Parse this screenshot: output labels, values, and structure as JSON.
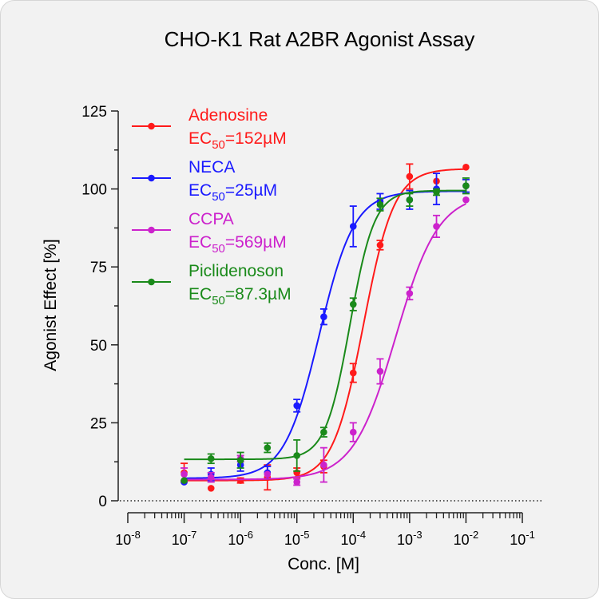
{
  "chart_data": {
    "type": "scatter",
    "title": "CHO-K1 Rat A2BR Agonist Assay",
    "xlabel": "Conc. [M]",
    "ylabel": "Agonist Effect [%]",
    "x_scale": "log",
    "xlim": [
      1e-08,
      0.1
    ],
    "ylim": [
      0,
      125
    ],
    "x_ticks": [
      {
        "value": 1e-08,
        "base": "10",
        "exp": "-8"
      },
      {
        "value": 1e-07,
        "base": "10",
        "exp": "-7"
      },
      {
        "value": 1e-06,
        "base": "10",
        "exp": "-6"
      },
      {
        "value": 1e-05,
        "base": "10",
        "exp": "-5"
      },
      {
        "value": 0.0001,
        "base": "10",
        "exp": "-4"
      },
      {
        "value": 0.001,
        "base": "10",
        "exp": "-3"
      },
      {
        "value": 0.01,
        "base": "10",
        "exp": "-2"
      },
      {
        "value": 0.1,
        "base": "10",
        "exp": "-1"
      }
    ],
    "y_ticks": [
      "0",
      "25",
      "50",
      "75",
      "100",
      "125"
    ],
    "baseline": 0,
    "legend_position": "top-left",
    "series": [
      {
        "name": "Adenosine",
        "ec50_label": {
          "prefix": "EC",
          "sub": "50",
          "value": "=152µM"
        },
        "color": "#ff1a1a",
        "fit": {
          "bottom": 6.5,
          "top": 106.5,
          "ec50": 0.000152,
          "hill": 1.6
        },
        "points": [
          {
            "x": 1e-07,
            "y": 9,
            "err": 3
          },
          {
            "x": 3e-07,
            "y": 4,
            "err": 0
          },
          {
            "x": 1e-06,
            "y": 6.5,
            "err": 0.8
          },
          {
            "x": 3e-06,
            "y": 7.5,
            "err": 4
          },
          {
            "x": 1e-05,
            "y": 9,
            "err": 1.5
          },
          {
            "x": 3e-05,
            "y": 11,
            "err": 2
          },
          {
            "x": 0.0001,
            "y": 41,
            "err": 3
          },
          {
            "x": 0.0003,
            "y": 82,
            "err": 1.5
          },
          {
            "x": 0.001,
            "y": 104,
            "err": 4
          },
          {
            "x": 0.003,
            "y": 102.5,
            "err": 0
          },
          {
            "x": 0.01,
            "y": 107,
            "err": 0
          }
        ]
      },
      {
        "name": "NECA",
        "ec50_label": {
          "prefix": "EC",
          "sub": "50",
          "value": "=25µM"
        },
        "color": "#1a1aff",
        "fit": {
          "bottom": 7.2,
          "top": 99.3,
          "ec50": 2.5e-05,
          "hill": 1.4
        },
        "points": [
          {
            "x": 1e-07,
            "y": 6,
            "err": 0
          },
          {
            "x": 3e-07,
            "y": 8.5,
            "err": 2
          },
          {
            "x": 1e-06,
            "y": 11.5,
            "err": 2
          },
          {
            "x": 3e-06,
            "y": 9,
            "err": 2
          },
          {
            "x": 1e-05,
            "y": 30.5,
            "err": 2
          },
          {
            "x": 3e-05,
            "y": 59,
            "err": 2.5
          },
          {
            "x": 0.0001,
            "y": 88,
            "err": 6.5
          },
          {
            "x": 0.0003,
            "y": 96,
            "err": 2.5
          },
          {
            "x": 0.001,
            "y": 96.5,
            "err": 3
          },
          {
            "x": 0.003,
            "y": 100,
            "err": 5
          },
          {
            "x": 0.01,
            "y": 101,
            "err": 2
          }
        ]
      },
      {
        "name": "CCPA",
        "ec50_label": {
          "prefix": "EC",
          "sub": "50",
          "value": "=569µM"
        },
        "color": "#cc22cc",
        "fit": {
          "bottom": 6.8,
          "top": 98.5,
          "ec50": 0.000569,
          "hill": 1.15
        },
        "points": [
          {
            "x": 1e-07,
            "y": 8.5,
            "err": 2
          },
          {
            "x": 3e-07,
            "y": 7.5,
            "err": 1.5
          },
          {
            "x": 1e-06,
            "y": 13.5,
            "err": 1
          },
          {
            "x": 3e-06,
            "y": 8.5,
            "err": 0
          },
          {
            "x": 1e-05,
            "y": 6,
            "err": 1
          },
          {
            "x": 3e-05,
            "y": 11.5,
            "err": 5.5
          },
          {
            "x": 0.0001,
            "y": 22,
            "err": 3
          },
          {
            "x": 0.0003,
            "y": 41.5,
            "err": 4
          },
          {
            "x": 0.001,
            "y": 66.5,
            "err": 2
          },
          {
            "x": 0.003,
            "y": 88,
            "err": 3.5
          },
          {
            "x": 0.01,
            "y": 96.5,
            "err": 0
          }
        ]
      },
      {
        "name": "Piclidenoson",
        "ec50_label": {
          "prefix": "EC",
          "sub": "50",
          "value": "=87.3µM"
        },
        "color": "#1a8a1a",
        "fit": {
          "bottom": 13.3,
          "top": 99.5,
          "ec50": 8.73e-05,
          "hill": 2.0
        },
        "points": [
          {
            "x": 1e-07,
            "y": 6.5,
            "err": 0
          },
          {
            "x": 3e-07,
            "y": 13.5,
            "err": 1.5
          },
          {
            "x": 1e-06,
            "y": 13,
            "err": 2.5
          },
          {
            "x": 3e-06,
            "y": 17,
            "err": 1.5
          },
          {
            "x": 1e-05,
            "y": 14.5,
            "err": 5
          },
          {
            "x": 3e-05,
            "y": 22,
            "err": 1.5
          },
          {
            "x": 0.0001,
            "y": 63,
            "err": 2
          },
          {
            "x": 0.0003,
            "y": 95,
            "err": 2
          },
          {
            "x": 0.001,
            "y": 96.5,
            "err": 2
          },
          {
            "x": 0.003,
            "y": 99,
            "err": 1
          },
          {
            "x": 0.01,
            "y": 101,
            "err": 2.5
          }
        ]
      }
    ]
  }
}
